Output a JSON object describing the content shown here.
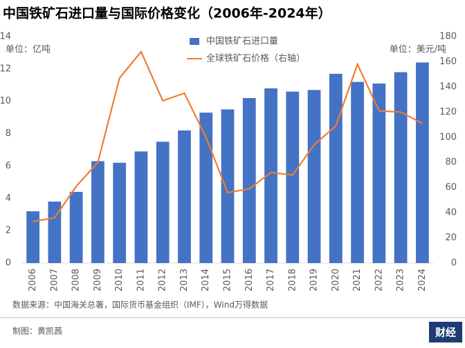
{
  "chart_data": {
    "type": "bar",
    "title": "中国铁矿石进口量与国际价格变化（2006年-2024年）",
    "y_unit_label": "单位：亿吨",
    "y2_unit_label": "单位：美元/吨",
    "categories": [
      "2006",
      "2007",
      "2008",
      "2009",
      "2010",
      "2011",
      "2012",
      "2013",
      "2014",
      "2015",
      "2016",
      "2017",
      "2018",
      "2019",
      "2020",
      "2021",
      "2022",
      "2023",
      "2024"
    ],
    "series": [
      {
        "name": "中国铁矿石进口量",
        "type": "bar",
        "color": "#4472c4",
        "values": [
          3.2,
          3.8,
          4.4,
          6.3,
          6.2,
          6.9,
          7.5,
          8.2,
          9.3,
          9.5,
          10.2,
          10.8,
          10.6,
          10.7,
          11.7,
          11.2,
          11.1,
          11.8,
          12.4
        ]
      },
      {
        "name": "全球铁矿石价格（右轴）",
        "type": "line",
        "axis": "y2",
        "color": "#ed7d31",
        "values": [
          33,
          36,
          61,
          80,
          147,
          168,
          129,
          135,
          100,
          56,
          59,
          72,
          70,
          94,
          109,
          158,
          121,
          120,
          111
        ]
      }
    ],
    "ylim": [
      0,
      14
    ],
    "yticks": [
      0,
      2,
      4,
      6,
      8,
      10,
      12,
      14
    ],
    "y2lim": [
      0,
      180
    ],
    "y2ticks": [
      0,
      20,
      40,
      60,
      80,
      100,
      120,
      140,
      160,
      180
    ],
    "grid": false,
    "legend": "top",
    "source": "数据来源：中国海关总署，国际货币基金组织（IMF），Wind万得数据",
    "credit": "制图：黄凯茜",
    "logo": "财经"
  }
}
